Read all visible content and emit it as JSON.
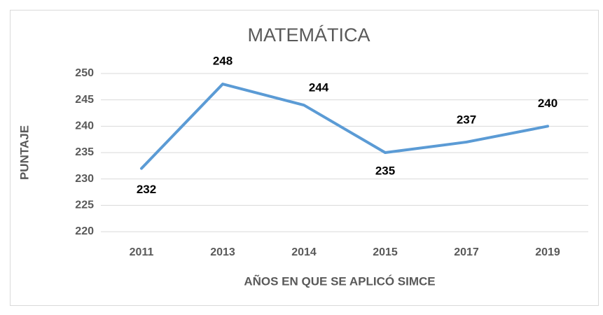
{
  "chart_data": {
    "type": "line",
    "title": "MATEMÁTICA",
    "x_label": "AÑOS EN QUE SE APLICÓ SIMCE",
    "y_label": "PUNTAJE",
    "categories": [
      "2011",
      "2013",
      "2014",
      "2015",
      "2017",
      "2019"
    ],
    "values": [
      232,
      248,
      244,
      235,
      237,
      240
    ],
    "color": "#5b9bd5",
    "ylim": [
      220,
      250
    ],
    "yticks": [
      220,
      225,
      230,
      235,
      240,
      245,
      250
    ],
    "grid": true
  }
}
